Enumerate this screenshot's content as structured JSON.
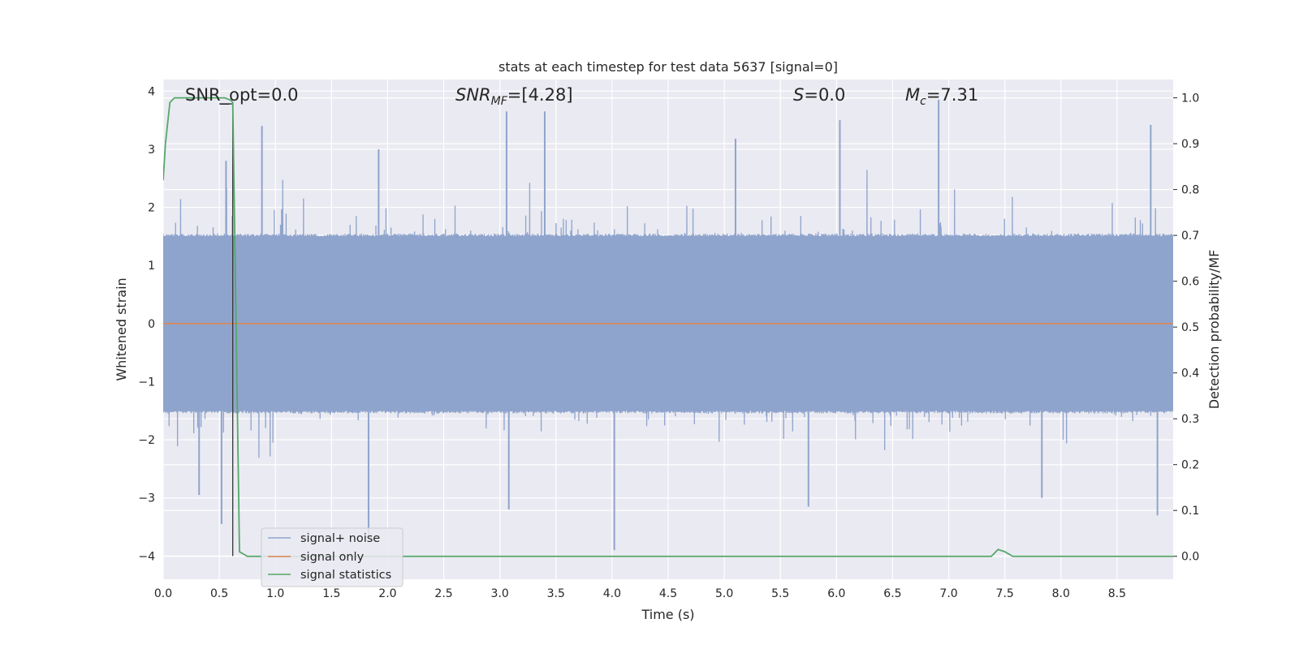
{
  "chart_data": {
    "type": "line",
    "title": "stats at each timestep for test data 5637 [signal=0]",
    "xlabel": "Time (s)",
    "ylabel": "Whitened strain",
    "y2label": "Detection probability/MF",
    "xlim": [
      0.0,
      9.0
    ],
    "ylim": [
      -4.4,
      4.2
    ],
    "y2lim": [
      -0.05,
      1.04
    ],
    "x_ticks": [
      "0.0",
      "0.5",
      "1.0",
      "1.5",
      "2.0",
      "2.5",
      "3.0",
      "3.5",
      "4.0",
      "4.5",
      "5.0",
      "5.5",
      "6.0",
      "6.5",
      "7.0",
      "7.5",
      "8.0",
      "8.5"
    ],
    "y_ticks": [
      "4",
      "3",
      "2",
      "1",
      "0",
      "−1",
      "−2",
      "−3",
      "−4"
    ],
    "y2_ticks": [
      "1.0",
      "0.9",
      "0.8",
      "0.7",
      "0.6",
      "0.5",
      "0.4",
      "0.3",
      "0.2",
      "0.1",
      "0.0"
    ],
    "grid": true,
    "legend_position": "lower-left",
    "annotations": {
      "snr_opt": "SNR_opt=0.0",
      "snr_mf_base": "SNR",
      "snr_mf_sub": "MF",
      "snr_mf_val": "=[4.28]",
      "s_letter": "S",
      "s_val": "=0.0",
      "mc_letter": "M",
      "mc_sub": "c",
      "mc_val": "=7.31"
    },
    "marker_line": {
      "x": 0.62,
      "y_from": -4.0,
      "y_to": 3.78
    },
    "series": [
      {
        "name": "signal+ noise",
        "color": "#8fa4cc",
        "kind": "noise",
        "core_amplitude": 1.5,
        "peaks": [
          {
            "x": 0.88,
            "y": 3.4
          },
          {
            "x": 3.06,
            "y": 3.65
          },
          {
            "x": 3.4,
            "y": 3.65
          },
          {
            "x": 6.03,
            "y": 3.5
          },
          {
            "x": 6.91,
            "y": 3.85
          },
          {
            "x": 8.8,
            "y": 3.42
          },
          {
            "x": 5.1,
            "y": 3.18
          },
          {
            "x": 1.92,
            "y": 3.0
          },
          {
            "x": 0.56,
            "y": 2.8
          },
          {
            "x": 0.52,
            "y": -3.45
          },
          {
            "x": 1.83,
            "y": -3.65
          },
          {
            "x": 4.02,
            "y": -3.9
          },
          {
            "x": 5.75,
            "y": -3.15
          },
          {
            "x": 8.86,
            "y": -3.3
          },
          {
            "x": 3.08,
            "y": -3.2
          },
          {
            "x": 2.45,
            "y": -1.0
          },
          {
            "x": 7.83,
            "y": -3.0
          },
          {
            "x": 0.32,
            "y": -2.95
          }
        ]
      },
      {
        "name": "signal only",
        "color": "#dd8452",
        "kind": "flat",
        "value": 0.0
      },
      {
        "name": "signal statistics",
        "color": "#55a868",
        "kind": "probability",
        "points": [
          [
            0.0,
            0.82
          ],
          [
            0.02,
            0.9
          ],
          [
            0.06,
            0.99
          ],
          [
            0.1,
            1.0
          ],
          [
            0.2,
            1.0
          ],
          [
            0.4,
            1.0
          ],
          [
            0.55,
            1.0
          ],
          [
            0.6,
            0.995
          ],
          [
            0.62,
            0.99
          ],
          [
            0.65,
            0.5
          ],
          [
            0.68,
            0.01
          ],
          [
            0.75,
            0.0
          ],
          [
            7.38,
            0.0
          ],
          [
            7.44,
            0.015
          ],
          [
            7.5,
            0.01
          ],
          [
            7.57,
            0.0
          ],
          [
            9.0,
            0.0
          ]
        ]
      }
    ]
  }
}
